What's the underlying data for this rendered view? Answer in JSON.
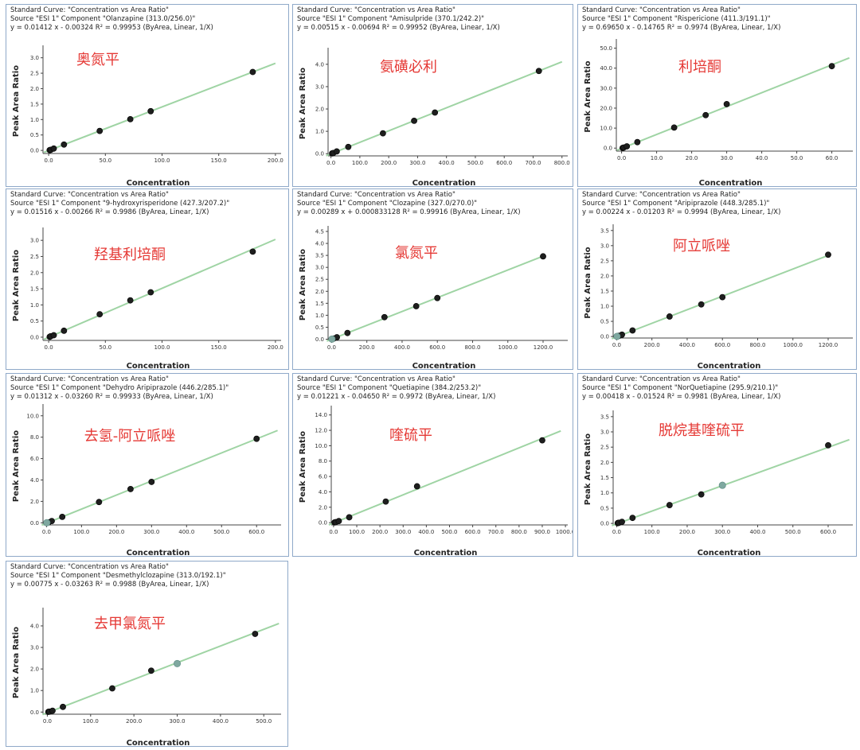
{
  "axis_labels": {
    "x": "Concentration",
    "y": "Peak Area Ratio"
  },
  "colors": {
    "line": "#9fd4a4",
    "point": "#1e1e1e",
    "highlight": "#7fa8a0",
    "label": "#e53935",
    "axis": "#444444",
    "border": "#8fa9c9"
  },
  "chart_data": [
    {
      "type": "scatter",
      "title": "Standard Curve: \"Concentration vs Area Ratio\"",
      "source": "Source \"ESI 1\" Component \"Olanzapine (313.0/256.0)\"",
      "equation": "y = 0.01412 x - 0.00324    R² = 0.99953 (ByArea, Linear, 1/X)",
      "annotation": "奥氮平",
      "xlabel": "Concentration",
      "ylabel": "Peak Area Ratio",
      "xlim": [
        -5,
        205
      ],
      "ylim": [
        -0.1,
        3.3
      ],
      "xticks": [
        "0.0",
        "50.0",
        "100.0",
        "150.0",
        "200.0"
      ],
      "yticks": [
        "0.0",
        "0.5",
        "1.0",
        "1.5",
        "2.0",
        "2.5",
        "3.0"
      ],
      "fit": {
        "slope": 0.01412,
        "intercept": -0.00324,
        "x_range": [
          0,
          200
        ]
      },
      "points": [
        [
          0.9,
          0.01
        ],
        [
          1.8,
          0.02
        ],
        [
          4.5,
          0.06
        ],
        [
          13.5,
          0.19
        ],
        [
          45,
          0.63
        ],
        [
          72,
          1.01
        ],
        [
          90,
          1.27
        ],
        [
          180,
          2.54
        ]
      ],
      "highlight": []
    },
    {
      "type": "scatter",
      "title": "Standard Curve: \"Concentration vs Area Ratio\"",
      "source": "Source \"ESI 1\" Component \"Amisulpride (370.1/242.2)\"",
      "equation": "y = 0.00515 x - 0.00694    R² = 0.99952 (ByArea, Linear, 1/X)",
      "annotation": "氨磺必利",
      "xlabel": "Concentration",
      "ylabel": "Peak Area Ratio",
      "xlim": [
        -10,
        820
      ],
      "ylim": [
        -0.1,
        4.6
      ],
      "xticks": [
        "0.0",
        "100.0",
        "200.0",
        "300.0",
        "400.0",
        "500.0",
        "600.0",
        "700.0",
        "800.0"
      ],
      "yticks": [
        "0.0",
        "1.0",
        "2.0",
        "3.0",
        "4.0"
      ],
      "fit": {
        "slope": 0.00515,
        "intercept": -0.00694,
        "x_range": [
          0,
          800
        ]
      },
      "points": [
        [
          4,
          0.01
        ],
        [
          8,
          0.03
        ],
        [
          20,
          0.1
        ],
        [
          60,
          0.3
        ],
        [
          180,
          0.91
        ],
        [
          288,
          1.47
        ],
        [
          360,
          1.84
        ],
        [
          720,
          3.7
        ]
      ],
      "highlight": []
    },
    {
      "type": "scatter",
      "title": "Standard Curve: \"Concentration vs Area Ratio\"",
      "source": "Source \"ESI 1\" Component \"Rispericione (411.3/191.1)\"",
      "equation": "y = 0.69650 x - 0.14765    R² = 0.9974 (ByArea, Linear, 1/X)",
      "annotation": "利培酮",
      "xlabel": "Concentration",
      "ylabel": "Peak Area Ratio",
      "xlim": [
        -1.5,
        66
      ],
      "ylim": [
        -1.5,
        53
      ],
      "xticks": [
        "0.0",
        "10.0",
        "20.0",
        "30.0",
        "40.0",
        "50.0",
        "60.0"
      ],
      "yticks": [
        "0.0",
        "10.0",
        "20.0",
        "30.0",
        "40.0",
        "50.0"
      ],
      "fit": {
        "slope": 0.6965,
        "intercept": -0.14765,
        "x_range": [
          0,
          65
        ]
      },
      "points": [
        [
          0.3,
          0.1
        ],
        [
          0.6,
          0.3
        ],
        [
          1.5,
          0.9
        ],
        [
          4.5,
          3
        ],
        [
          15,
          10.3
        ],
        [
          24,
          16.5
        ],
        [
          30,
          22
        ],
        [
          60,
          41
        ]
      ],
      "highlight": []
    },
    {
      "type": "scatter",
      "title": "Standard Curve: \"Concentration vs Area Ratio\"",
      "source": "Source \"ESI 1\" Component \"9-hydroxyrisperidone (427.3/207.2)\"",
      "equation": "y = 0.01516 x - 0.00266    R² = 0.9986 (ByArea, Linear, 1/X)",
      "annotation": "羟基利培酮",
      "xlabel": "Concentration",
      "ylabel": "Peak Area Ratio",
      "xlim": [
        -5,
        205
      ],
      "ylim": [
        -0.1,
        3.3
      ],
      "xticks": [
        "0.0",
        "50.0",
        "100.0",
        "150.0",
        "200.0"
      ],
      "yticks": [
        "0.0",
        "0.5",
        "1.0",
        "1.5",
        "2.0",
        "2.5",
        "3.0"
      ],
      "fit": {
        "slope": 0.01516,
        "intercept": -0.00266,
        "x_range": [
          0,
          200
        ]
      },
      "points": [
        [
          0.9,
          0.01
        ],
        [
          1.8,
          0.03
        ],
        [
          4.5,
          0.06
        ],
        [
          13.5,
          0.2
        ],
        [
          45,
          0.71
        ],
        [
          72,
          1.14
        ],
        [
          90,
          1.39
        ],
        [
          180,
          2.65
        ]
      ],
      "highlight": []
    },
    {
      "type": "scatter",
      "title": "Standard Curve: \"Concentration vs Area Ratio\"",
      "source": "Source \"ESI 1\" Component \"Clozapine (327.0/270.0)\"",
      "equation": "y = 0.00289 x + 0.000833128    R² = 0.99916 (ByArea, Linear, 1/X)",
      "annotation": "氯氮平",
      "xlabel": "Concentration",
      "ylabel": "Peak Area Ratio",
      "xlim": [
        -20,
        1340
      ],
      "ylim": [
        -0.05,
        4.6
      ],
      "xticks": [
        "0.0",
        "200.0",
        "400.0",
        "600.0",
        "800.0",
        "1000.0",
        "1200.0"
      ],
      "yticks": [
        "0.0",
        "0.5",
        "1.0",
        "1.5",
        "2.0",
        "2.5",
        "3.0",
        "3.5",
        "4.0",
        "4.5"
      ],
      "fit": {
        "slope": 0.00289,
        "intercept": 0.000833128,
        "x_range": [
          0,
          1200
        ]
      },
      "points": [
        [
          6,
          0.02
        ],
        [
          12,
          0.03
        ],
        [
          30,
          0.08
        ],
        [
          90,
          0.26
        ],
        [
          300,
          0.92
        ],
        [
          480,
          1.38
        ],
        [
          600,
          1.72
        ],
        [
          1200,
          3.46
        ]
      ],
      "highlight": [
        [
          2,
          0.006
        ]
      ]
    },
    {
      "type": "scatter",
      "title": "Standard Curve: \"Concentration vs Area Ratio\"",
      "source": "Source \"ESI 1\" Component \"Aripiprazole (448.3/285.1)\"",
      "equation": "y = 0.00224 x - 0.01203    R² = 0.9994 (ByArea, Linear, 1/X)",
      "annotation": "阿立哌唑",
      "xlabel": "Concentration",
      "ylabel": "Peak Area Ratio",
      "xlim": [
        -20,
        1340
      ],
      "ylim": [
        -0.05,
        3.6
      ],
      "xticks": [
        "0.0",
        "200.0",
        "400.0",
        "600.0",
        "800.0",
        "1000.0",
        "1200.0"
      ],
      "yticks": [
        "0.0",
        "0.5",
        "1.0",
        "1.5",
        "2.0",
        "2.5",
        "3.0",
        "3.5"
      ],
      "fit": {
        "slope": 0.00224,
        "intercept": -0.01203,
        "x_range": [
          0,
          1200
        ]
      },
      "points": [
        [
          6,
          0.01
        ],
        [
          12,
          0.02
        ],
        [
          30,
          0.06
        ],
        [
          90,
          0.2
        ],
        [
          300,
          0.66
        ],
        [
          480,
          1.06
        ],
        [
          600,
          1.3
        ],
        [
          1200,
          2.7
        ]
      ],
      "highlight": [
        [
          2,
          0.003
        ]
      ]
    },
    {
      "type": "scatter",
      "title": "Standard Curve: \"Concentration vs Area Ratio\"",
      "source": "Source \"ESI 1\" Component \"Dehydro Aripiprazole (446.2/285.1)\"",
      "equation": "y = 0.01312 x - 0.03260    R² = 0.99933 (ByArea, Linear, 1/X)",
      "annotation": "去氢-阿立哌唑",
      "xlabel": "Concentration",
      "ylabel": "Peak Area Ratio",
      "xlim": [
        -10,
        670
      ],
      "ylim": [
        -0.2,
        10.8
      ],
      "xticks": [
        "0.0",
        "100.0",
        "200.0",
        "300.0",
        "400.0",
        "500.0",
        "600.0"
      ],
      "yticks": [
        "0.0",
        "2.0",
        "4.0",
        "6.0",
        "8.0",
        "10.0"
      ],
      "fit": {
        "slope": 0.01312,
        "intercept": -0.0326,
        "x_range": [
          0,
          660
        ]
      },
      "points": [
        [
          3,
          0.01
        ],
        [
          6,
          0.04
        ],
        [
          15,
          0.16
        ],
        [
          45,
          0.55
        ],
        [
          150,
          1.94
        ],
        [
          240,
          3.15
        ],
        [
          300,
          3.82
        ],
        [
          600,
          7.85
        ]
      ],
      "highlight": [
        [
          1,
          0.005
        ]
      ]
    },
    {
      "type": "scatter",
      "title": "Standard Curve: \"Concentration vs Area Ratio\"",
      "source": "Source \"ESI 1\" Component \"Quetiapine (384.2/253.2)\"",
      "equation": "y = 0.01221 x - 0.04650    R² = 0.9972 (ByArea, Linear, 1/X)",
      "annotation": "喹硫平",
      "xlabel": "Concentration",
      "ylabel": "Peak Area Ratio",
      "xlim": [
        -10,
        1010
      ],
      "ylim": [
        -0.3,
        14.8
      ],
      "xticks": [
        "0.0",
        "100.0",
        "200.0",
        "300.0",
        "400.0",
        "500.0",
        "600.0",
        "700.0",
        "800.0",
        "900.0",
        "1000.0"
      ],
      "yticks": [
        "0.0",
        "2.0",
        "4.0",
        "6.0",
        "8.0",
        "10.0",
        "12.0",
        "14.0"
      ],
      "fit": {
        "slope": 0.01221,
        "intercept": -0.0465,
        "x_range": [
          0,
          980
        ]
      },
      "points": [
        [
          4.5,
          0.02
        ],
        [
          9,
          0.06
        ],
        [
          22.5,
          0.2
        ],
        [
          67.5,
          0.69
        ],
        [
          225,
          2.74
        ],
        [
          360,
          4.72
        ],
        [
          900,
          10.7
        ]
      ],
      "highlight": []
    },
    {
      "type": "scatter",
      "title": "Standard Curve: \"Concentration vs Area Ratio\"",
      "source": "Source \"ESI 1\" Component \"NorQuetiapine (295.9/210.1)\"",
      "equation": "y = 0.00418 x - 0.01524    R² = 0.9981 (ByArea, Linear, 1/X)",
      "annotation": "脱烷基喹硫平",
      "xlabel": "Concentration",
      "ylabel": "Peak Area Ratio",
      "xlim": [
        -10,
        670
      ],
      "ylim": [
        -0.05,
        3.6
      ],
      "xticks": [
        "0.0",
        "100.0",
        "200.0",
        "300.0",
        "400.0",
        "500.0",
        "600.0"
      ],
      "yticks": [
        "0.0",
        "0.5",
        "1.0",
        "1.5",
        "2.0",
        "2.5",
        "3.0",
        "3.5"
      ],
      "fit": {
        "slope": 0.00418,
        "intercept": -0.01524,
        "x_range": [
          0,
          660
        ]
      },
      "points": [
        [
          3,
          0.01
        ],
        [
          6,
          0.02
        ],
        [
          15,
          0.05
        ],
        [
          45,
          0.18
        ],
        [
          150,
          0.6
        ],
        [
          240,
          0.95
        ],
        [
          600,
          2.56
        ]
      ],
      "highlight": [
        [
          300,
          1.25
        ]
      ]
    },
    {
      "type": "scatter",
      "title": "Standard Curve: \"Concentration vs Area Ratio\"",
      "source": "Source \"ESI 1\" Component \"Desmethylclozapine (313.0/192.1)\"",
      "equation": "y = 0.00775 x - 0.03263    R² = 0.9988 (ByArea, Linear, 1/X)",
      "annotation": "去甲氯氮平",
      "xlabel": "Concentration",
      "ylabel": "Peak Area Ratio",
      "xlim": [
        -10,
        540
      ],
      "ylim": [
        -0.1,
        4.7
      ],
      "xticks": [
        "0.0",
        "100.0",
        "200.0",
        "300.0",
        "400.0",
        "500.0"
      ],
      "yticks": [
        "0.0",
        "1.0",
        "2.0",
        "3.0",
        "4.0"
      ],
      "fit": {
        "slope": 0.00775,
        "intercept": -0.03263,
        "x_range": [
          0,
          535
        ]
      },
      "points": [
        [
          2.4,
          0.01
        ],
        [
          4.8,
          0.02
        ],
        [
          12,
          0.06
        ],
        [
          36,
          0.24
        ],
        [
          150,
          1.1
        ],
        [
          240,
          1.92
        ],
        [
          480,
          3.63
        ]
      ],
      "highlight": [
        [
          300,
          2.25
        ]
      ]
    }
  ]
}
